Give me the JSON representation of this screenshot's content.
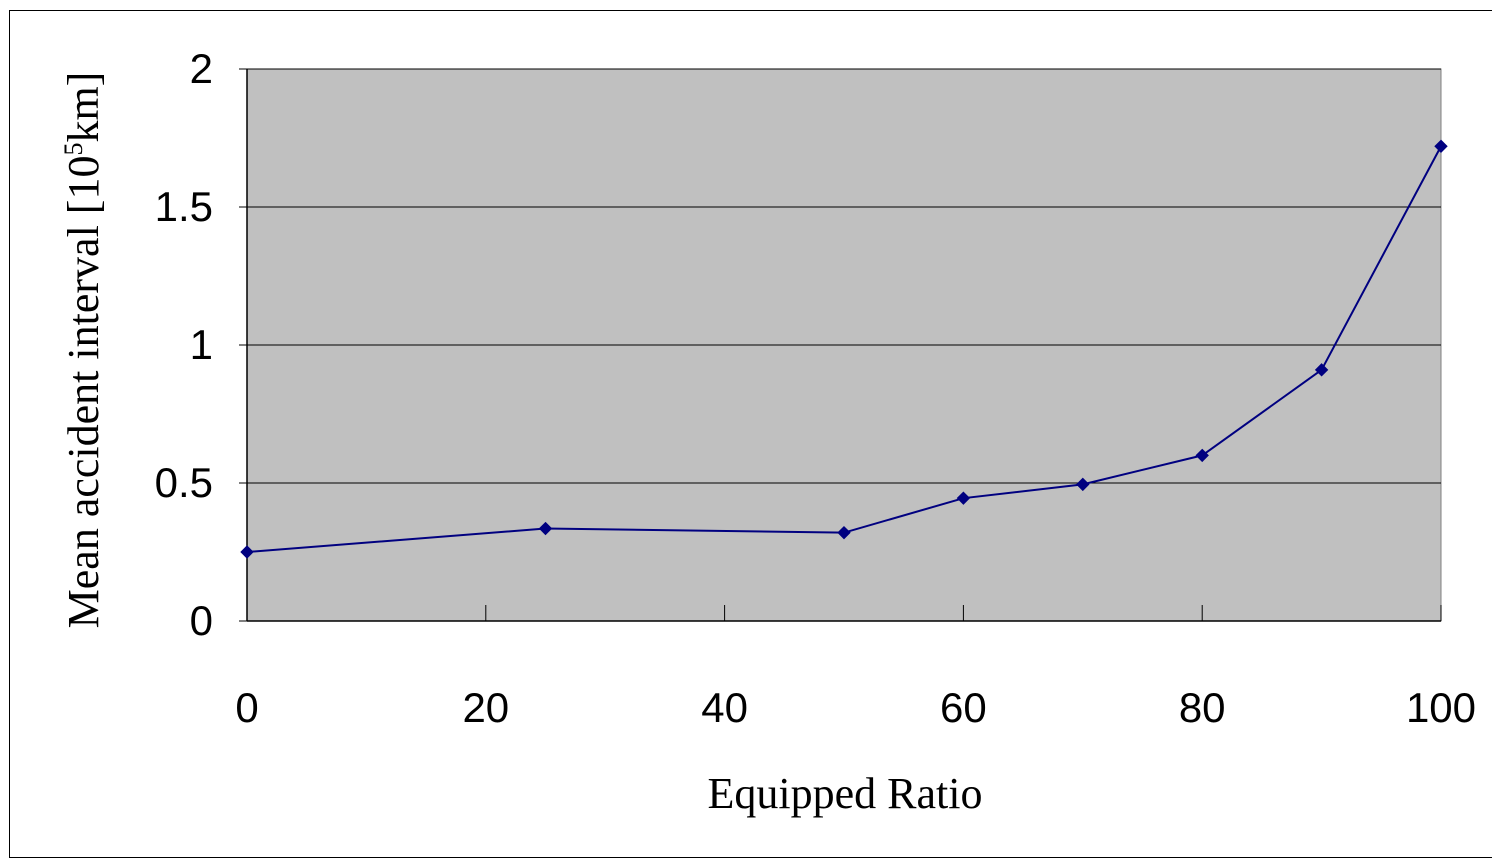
{
  "chart_data": {
    "type": "line",
    "title": "",
    "xlabel": "Equipped Ratio",
    "ylabel": {
      "prefix": "Mean accident interval [",
      "base": "10",
      "exponent": "5",
      "suffix": "km]"
    },
    "x_ticks": [
      "0",
      "20",
      "40",
      "60",
      "80",
      "100"
    ],
    "y_ticks": [
      "0",
      "0.5",
      "1",
      "1.5",
      "2"
    ],
    "xlim": [
      0,
      100
    ],
    "ylim": [
      0,
      2
    ],
    "grid": "horizontal",
    "legend": "none",
    "plot_background": "#C0C0C0",
    "series": [
      {
        "color": "#000080",
        "marker": "diamond",
        "x": [
          0,
          25,
          50,
          60,
          70,
          80,
          90,
          100
        ],
        "y": [
          0.25,
          0.335,
          0.32,
          0.445,
          0.495,
          0.6,
          0.91,
          1.72
        ]
      }
    ]
  }
}
